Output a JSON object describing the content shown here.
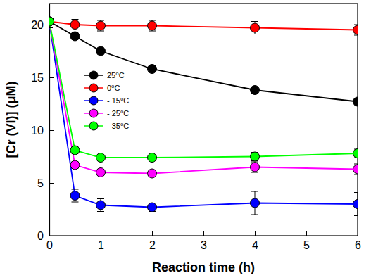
{
  "chart_data": {
    "type": "line",
    "x_label": "Reaction time (h)",
    "y_label": "[Cr (VI)] (μM)",
    "x": [
      0,
      0.5,
      1,
      2,
      4,
      6
    ],
    "series": [
      {
        "name": "25⁰C",
        "color": "#000000",
        "values": [
          20.3,
          18.9,
          17.5,
          15.8,
          13.8,
          12.7
        ],
        "errors": [
          0.6,
          0.3,
          0.3,
          0.3,
          0.3,
          0.3
        ]
      },
      {
        "name": "0⁰C",
        "color": "#ff0000",
        "values": [
          20.3,
          20.0,
          19.9,
          19.9,
          19.7,
          19.5
        ],
        "errors": [
          0.6,
          0.5,
          0.5,
          0.5,
          0.6,
          0.5
        ]
      },
      {
        "name": "- 15⁰C",
        "color": "#0000ff",
        "values": [
          20.3,
          3.8,
          2.9,
          2.7,
          3.1,
          3.0
        ],
        "errors": [
          0.6,
          0.6,
          0.6,
          0.4,
          1.1,
          1.1
        ]
      },
      {
        "name": "- 25⁰C",
        "color": "#ff00ff",
        "values": [
          20.3,
          6.7,
          6.0,
          5.9,
          6.5,
          6.3
        ],
        "errors": [
          0.6,
          0.3,
          0.3,
          0.3,
          0.5,
          0.5
        ]
      },
      {
        "name": "- 35⁰C",
        "color": "#00ff00",
        "values": [
          20.3,
          8.1,
          7.4,
          7.4,
          7.5,
          7.8
        ],
        "errors": [
          0.6,
          0.3,
          0.3,
          0.3,
          0.4,
          0.4
        ]
      }
    ],
    "marker": "circle",
    "legend": "upper left",
    "grid": false,
    "xlim": [
      0,
      6
    ],
    "xticks": [
      0,
      1,
      2,
      3,
      4,
      5,
      6
    ],
    "ylim": [
      0,
      22
    ],
    "yticks": [
      0,
      5,
      10,
      15,
      20
    ]
  }
}
